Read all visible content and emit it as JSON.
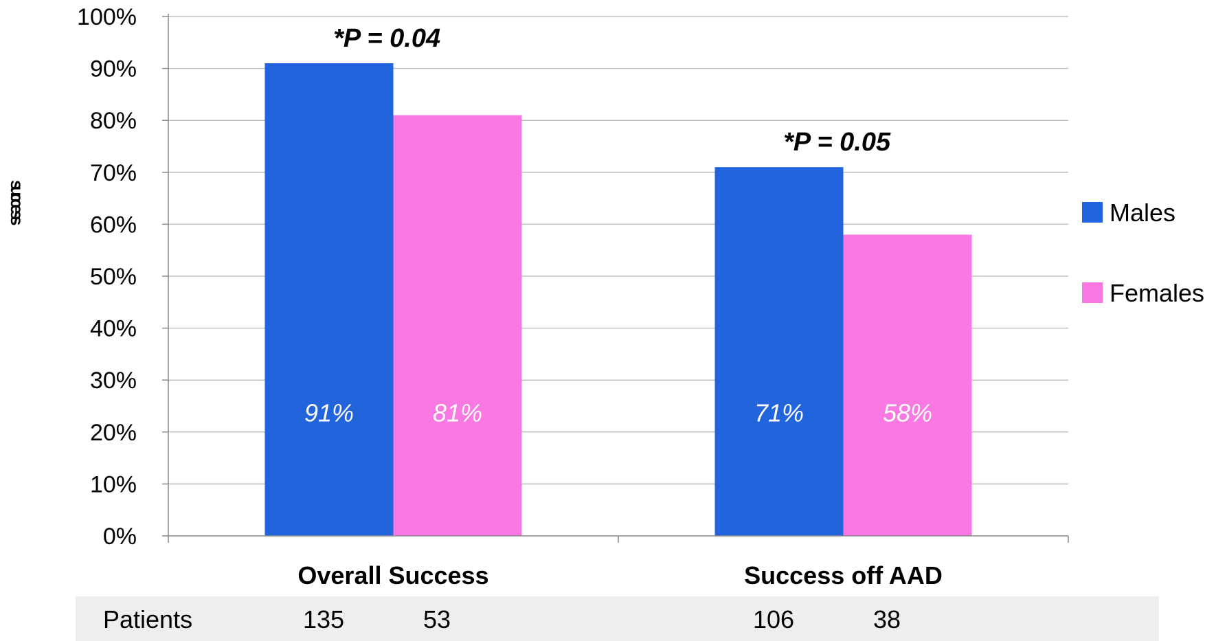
{
  "chart_data": {
    "type": "bar",
    "title": "",
    "xlabel": "",
    "ylabel": "success",
    "ylim": [
      0,
      100
    ],
    "y_ticks": [
      "0%",
      "10%",
      "20%",
      "30%",
      "40%",
      "50%",
      "60%",
      "70%",
      "80%",
      "90%",
      "100%"
    ],
    "categories": [
      "Overall Success",
      "Success off AAD"
    ],
    "series": [
      {
        "name": "Males",
        "color": "#2264DC",
        "values": [
          91,
          71
        ],
        "labels": [
          "91%",
          "71%"
        ]
      },
      {
        "name": "Females",
        "color": "#FA78E1",
        "values": [
          81,
          58
        ],
        "labels": [
          "81%",
          "58%"
        ]
      }
    ],
    "annotations": [
      "*P = 0.04",
      "*P = 0.05"
    ],
    "grid": true,
    "legend_position": "right",
    "patients_table": {
      "label": "Patients",
      "values": [
        [
          "135",
          "53"
        ],
        [
          "106",
          "38"
        ]
      ]
    }
  }
}
